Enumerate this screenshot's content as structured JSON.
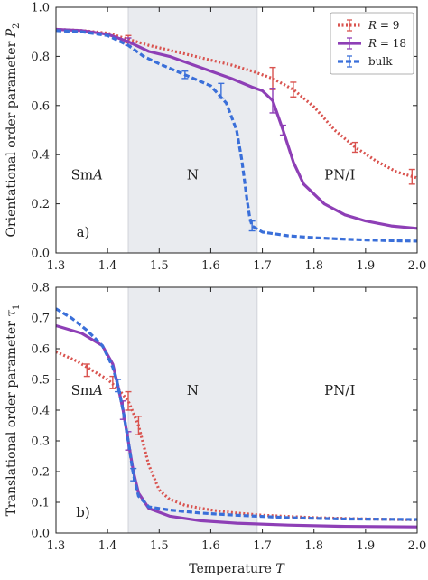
{
  "chart_data": [
    {
      "type": "line",
      "panel_label": "a)",
      "ylabel": "Orientational order parameter",
      "ylabel_symbol": "P",
      "ylabel_sub": "2",
      "xlabel": "Temperature",
      "xlabel_symbol": "T",
      "xlim": [
        1.3,
        2.0
      ],
      "ylim": [
        0.0,
        1.0
      ],
      "xticks": [
        "1.3",
        "1.4",
        "1.5",
        "1.6",
        "1.7",
        "1.8",
        "1.9",
        "2.0"
      ],
      "yticks": [
        "0.0",
        "0.2",
        "0.4",
        "0.6",
        "0.8",
        "1.0"
      ],
      "shaded_region": [
        1.44,
        1.69
      ],
      "region_labels": [
        {
          "text": "SmA",
          "italic_part": "A",
          "x": 1.36,
          "y": 0.3
        },
        {
          "text": "N",
          "x": 1.565,
          "y": 0.3
        },
        {
          "text": "PN/I",
          "x": 1.85,
          "y": 0.3
        }
      ],
      "legend": {
        "placement": "top-right",
        "entries": [
          {
            "symbol": "R",
            "value": "9",
            "text": "R = 9"
          },
          {
            "symbol": "R",
            "value": "18",
            "text": "R = 18"
          },
          {
            "text": "bulk"
          }
        ]
      },
      "series": [
        {
          "name": "R = 9",
          "color": "#d9534f",
          "style": "dotted",
          "x": [
            1.3,
            1.35,
            1.4,
            1.44,
            1.48,
            1.52,
            1.56,
            1.6,
            1.64,
            1.68,
            1.72,
            1.76,
            1.8,
            1.84,
            1.88,
            1.92,
            1.96,
            2.0
          ],
          "y": [
            0.91,
            0.905,
            0.895,
            0.87,
            0.845,
            0.825,
            0.805,
            0.785,
            0.765,
            0.74,
            0.71,
            0.665,
            0.595,
            0.5,
            0.43,
            0.375,
            0.33,
            0.305
          ],
          "error_bars": [
            {
              "x": 1.44,
              "y": 0.87,
              "err": 0.015
            },
            {
              "x": 1.72,
              "y": 0.71,
              "err": 0.045
            },
            {
              "x": 1.76,
              "y": 0.665,
              "err": 0.03
            },
            {
              "x": 1.88,
              "y": 0.43,
              "err": 0.02
            },
            {
              "x": 1.99,
              "y": 0.31,
              "err": 0.03
            }
          ]
        },
        {
          "name": "R = 18",
          "color": "#8e3fb6",
          "style": "solid",
          "x": [
            1.3,
            1.35,
            1.4,
            1.44,
            1.48,
            1.52,
            1.56,
            1.6,
            1.64,
            1.68,
            1.7,
            1.72,
            1.74,
            1.76,
            1.78,
            1.82,
            1.86,
            1.9,
            1.95,
            2.0
          ],
          "y": [
            0.91,
            0.905,
            0.89,
            0.86,
            0.82,
            0.8,
            0.77,
            0.74,
            0.71,
            0.675,
            0.66,
            0.62,
            0.5,
            0.37,
            0.28,
            0.2,
            0.155,
            0.13,
            0.11,
            0.1
          ],
          "error_bars": [
            {
              "x": 1.44,
              "y": 0.86,
              "err": 0.015
            },
            {
              "x": 1.72,
              "y": 0.62,
              "err": 0.05
            },
            {
              "x": 1.74,
              "y": 0.5,
              "err": 0.02
            }
          ]
        },
        {
          "name": "bulk",
          "color": "#3a6fd9",
          "style": "dashed",
          "x": [
            1.3,
            1.35,
            1.4,
            1.44,
            1.47,
            1.5,
            1.55,
            1.6,
            1.63,
            1.65,
            1.66,
            1.665,
            1.67,
            1.675,
            1.68,
            1.7,
            1.75,
            1.8,
            1.85,
            1.9,
            1.95,
            2.0
          ],
          "y": [
            0.905,
            0.9,
            0.885,
            0.845,
            0.8,
            0.77,
            0.725,
            0.68,
            0.61,
            0.5,
            0.38,
            0.3,
            0.22,
            0.15,
            0.11,
            0.085,
            0.07,
            0.062,
            0.057,
            0.053,
            0.05,
            0.048
          ],
          "error_bars": [
            {
              "x": 1.55,
              "y": 0.725,
              "err": 0.015
            },
            {
              "x": 1.62,
              "y": 0.66,
              "err": 0.03
            },
            {
              "x": 1.68,
              "y": 0.11,
              "err": 0.02
            }
          ]
        }
      ]
    },
    {
      "type": "line",
      "panel_label": "b)",
      "ylabel": "Translational order parameter",
      "ylabel_symbol": "τ",
      "ylabel_sub": "1",
      "xlabel": "Temperature",
      "xlabel_symbol": "T",
      "xlim": [
        1.3,
        2.0
      ],
      "ylim": [
        0.0,
        0.8
      ],
      "xticks": [
        "1.3",
        "1.4",
        "1.5",
        "1.6",
        "1.7",
        "1.8",
        "1.9",
        "2.0"
      ],
      "yticks": [
        "0.0",
        "0.1",
        "0.2",
        "0.3",
        "0.4",
        "0.5",
        "0.6",
        "0.7",
        "0.8"
      ],
      "shaded_region": [
        1.44,
        1.69
      ],
      "region_labels": [
        {
          "text": "SmA",
          "italic_part": "A",
          "x": 1.36,
          "y": 0.45
        },
        {
          "text": "N",
          "x": 1.565,
          "y": 0.45
        },
        {
          "text": "PN/I",
          "x": 1.85,
          "y": 0.45
        }
      ],
      "series": [
        {
          "name": "R = 9",
          "color": "#d9534f",
          "style": "dotted",
          "x": [
            1.3,
            1.34,
            1.37,
            1.4,
            1.42,
            1.44,
            1.46,
            1.48,
            1.5,
            1.52,
            1.55,
            1.6,
            1.65,
            1.7,
            1.8,
            1.9,
            2.0
          ],
          "y": [
            0.59,
            0.56,
            0.53,
            0.5,
            0.47,
            0.43,
            0.35,
            0.22,
            0.14,
            0.11,
            0.09,
            0.075,
            0.065,
            0.058,
            0.05,
            0.046,
            0.043
          ],
          "error_bars": [
            {
              "x": 1.36,
              "y": 0.53,
              "err": 0.02
            },
            {
              "x": 1.41,
              "y": 0.49,
              "err": 0.02
            },
            {
              "x": 1.44,
              "y": 0.43,
              "err": 0.03
            },
            {
              "x": 1.46,
              "y": 0.35,
              "err": 0.03
            }
          ]
        },
        {
          "name": "R = 18",
          "color": "#8e3fb6",
          "style": "solid",
          "x": [
            1.3,
            1.35,
            1.39,
            1.41,
            1.42,
            1.43,
            1.44,
            1.45,
            1.46,
            1.48,
            1.52,
            1.58,
            1.65,
            1.75,
            1.85,
            2.0
          ],
          "y": [
            0.675,
            0.65,
            0.61,
            0.55,
            0.48,
            0.4,
            0.3,
            0.2,
            0.13,
            0.08,
            0.055,
            0.04,
            0.032,
            0.026,
            0.022,
            0.02
          ],
          "error_bars": [
            {
              "x": 1.43,
              "y": 0.4,
              "err": 0.03
            },
            {
              "x": 1.44,
              "y": 0.3,
              "err": 0.03
            }
          ]
        },
        {
          "name": "bulk",
          "color": "#3a6fd9",
          "style": "dashed",
          "x": [
            1.3,
            1.33,
            1.36,
            1.39,
            1.41,
            1.42,
            1.43,
            1.44,
            1.45,
            1.46,
            1.48,
            1.52,
            1.58,
            1.65,
            1.75,
            1.85,
            2.0
          ],
          "y": [
            0.73,
            0.7,
            0.66,
            0.61,
            0.54,
            0.48,
            0.4,
            0.3,
            0.19,
            0.12,
            0.085,
            0.075,
            0.065,
            0.058,
            0.05,
            0.046,
            0.044
          ],
          "error_bars": [
            {
              "x": 1.42,
              "y": 0.48,
              "err": 0.02
            },
            {
              "x": 1.45,
              "y": 0.19,
              "err": 0.02
            }
          ]
        }
      ]
    }
  ]
}
